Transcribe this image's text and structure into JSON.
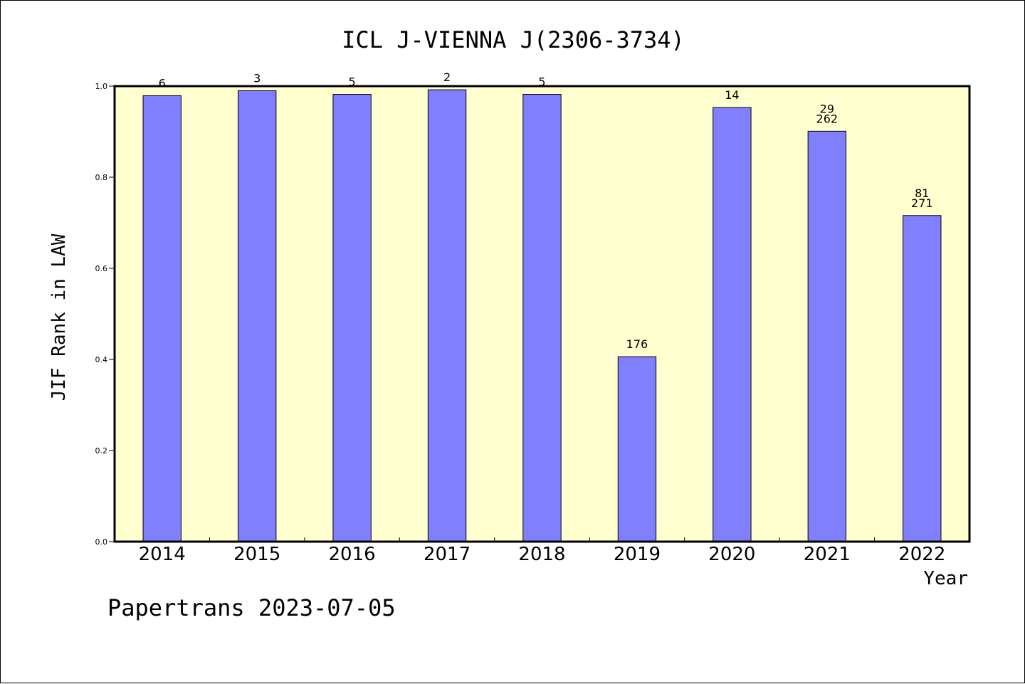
{
  "chart_data": {
    "type": "bar",
    "title": "ICL J-VIENNA J(2306-3734)",
    "ylabel": "JIF Rank in LAW",
    "xlabel": "Year",
    "categories": [
      "2014",
      "2015",
      "2016",
      "2017",
      "2018",
      "2019",
      "2020",
      "2021",
      "2022"
    ],
    "values": [
      0.979,
      0.99,
      0.982,
      0.992,
      0.982,
      0.406,
      0.953,
      0.901,
      0.716
    ],
    "bar_labels": [
      [
        "6"
      ],
      [
        "3"
      ],
      [
        "5"
      ],
      [
        "2"
      ],
      [
        "5"
      ],
      [
        "176"
      ],
      [
        "14"
      ],
      [
        "29",
        "262"
      ],
      [
        "81",
        "271"
      ]
    ],
    "ylim": [
      0,
      1.0
    ],
    "yticks": [
      "0.0",
      "0.2",
      "0.4",
      "0.6",
      "0.8",
      "1.0"
    ],
    "grid": false,
    "colors": {
      "bar": "#8080ff",
      "plot_background": "#ffffd0",
      "axis": "#000000"
    }
  },
  "footer": "Papertrans 2023-07-05"
}
